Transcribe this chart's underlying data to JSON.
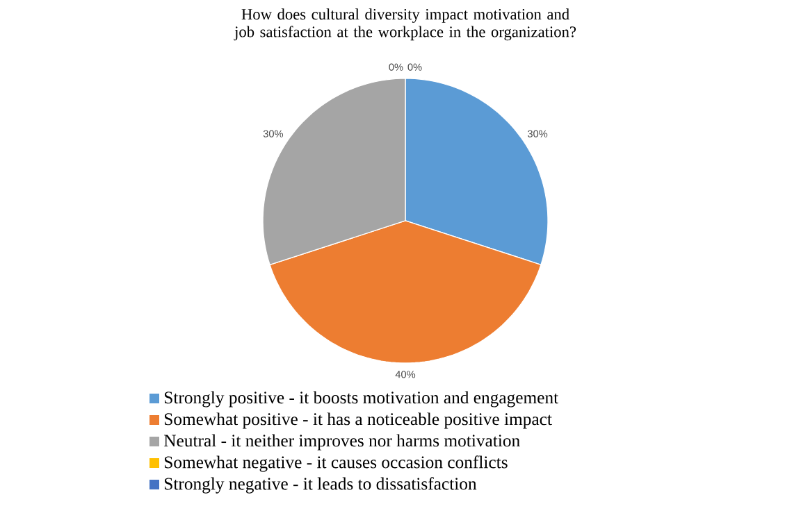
{
  "chart_data": {
    "type": "pie",
    "title": "How does cultural diversity impact motivation and job satisfaction at the workplace in the organization?",
    "categories": [
      "Strongly positive - it boosts motivation and engagement",
      "Somewhat positive - it has a noticeable positive impact",
      "Neutral - it neither improves nor harms motivation",
      "Somewhat negative - it causes occasion conflicts",
      "Strongly negative - it leads to dissatisfaction"
    ],
    "values": [
      30,
      40,
      30,
      0,
      0
    ],
    "value_labels": [
      "30%",
      "40%",
      "30%",
      "0%",
      "0%"
    ],
    "colors": [
      "#5b9bd5",
      "#ed7d31",
      "#a5a5a5",
      "#ffc000",
      "#4472c4"
    ],
    "legend": "bottom"
  }
}
